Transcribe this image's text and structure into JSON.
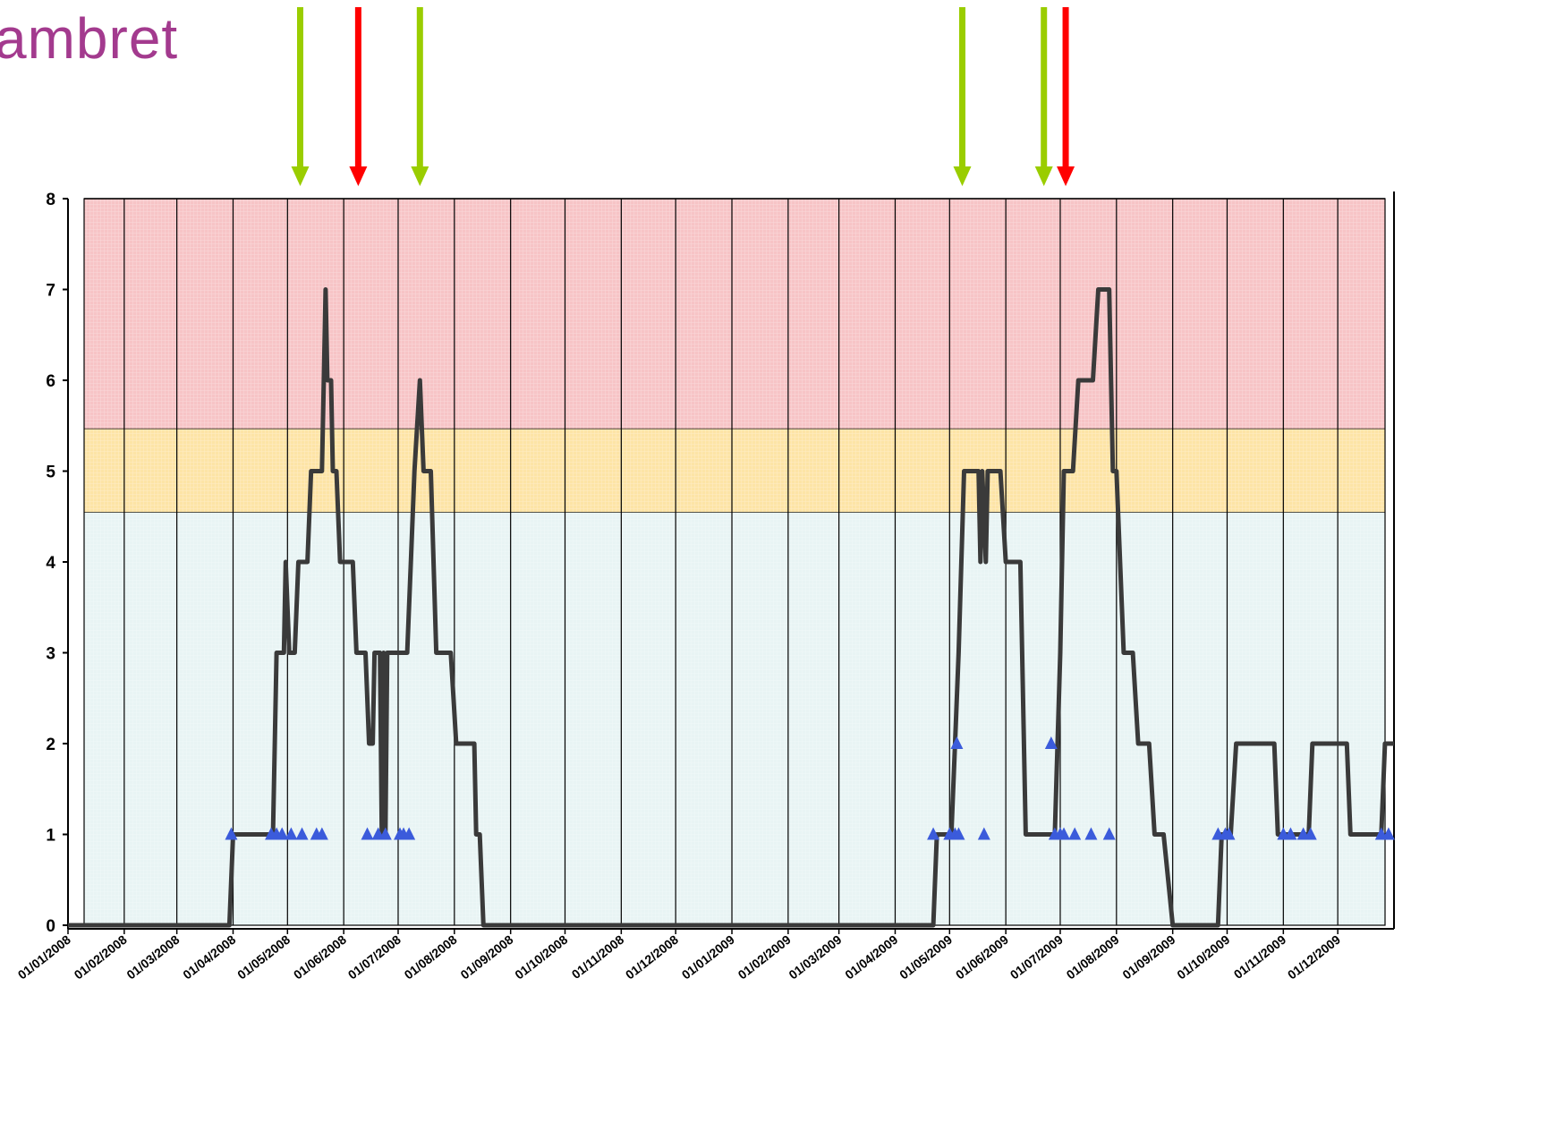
{
  "logo": {
    "text": "ambret"
  },
  "chart_data": {
    "type": "line",
    "ylim": [
      0,
      8
    ],
    "yticks": [
      "0",
      "1",
      "2",
      "3",
      "4",
      "5",
      "6",
      "7",
      "8"
    ],
    "xlim": [
      "2008-01-01",
      "2010-01-01"
    ],
    "xtick_labels": [
      "01/01/2008",
      "01/02/2008",
      "01/03/2008",
      "01/04/2008",
      "01/05/2008",
      "01/06/2008",
      "01/07/2008",
      "01/08/2008",
      "01/09/2008",
      "01/10/2008",
      "01/11/2008",
      "01/12/2008",
      "01/01/2009",
      "01/02/2009",
      "01/03/2009",
      "01/04/2009",
      "01/05/2009",
      "01/06/2009",
      "01/07/2009",
      "01/08/2009",
      "01/09/2009",
      "01/10/2009",
      "01/11/2009",
      "01/12/2009"
    ],
    "bands": [
      {
        "from": 0,
        "to": 4.55,
        "color": "#e8f4f4"
      },
      {
        "from": 4.55,
        "to": 5.47,
        "color": "#fde4a6"
      },
      {
        "from": 5.47,
        "to": 8,
        "color": "#f7c4c6"
      }
    ],
    "grid": true,
    "series": [
      {
        "color": "#3a3a3a",
        "points": [
          [
            "2008-01-01",
            0
          ],
          [
            "2008-03-30",
            0
          ],
          [
            "2008-04-01",
            1
          ],
          [
            "2008-04-23",
            1
          ],
          [
            "2008-04-25",
            3
          ],
          [
            "2008-04-29",
            3
          ],
          [
            "2008-04-30",
            4
          ],
          [
            "2008-05-02",
            3
          ],
          [
            "2008-05-05",
            3
          ],
          [
            "2008-05-07",
            4
          ],
          [
            "2008-05-12",
            4
          ],
          [
            "2008-05-14",
            5
          ],
          [
            "2008-05-20",
            5
          ],
          [
            "2008-05-21",
            6
          ],
          [
            "2008-05-22",
            7
          ],
          [
            "2008-05-23",
            6
          ],
          [
            "2008-05-25",
            6
          ],
          [
            "2008-05-26",
            5
          ],
          [
            "2008-05-28",
            5
          ],
          [
            "2008-05-30",
            4
          ],
          [
            "2008-06-06",
            4
          ],
          [
            "2008-06-08",
            3
          ],
          [
            "2008-06-13",
            3
          ],
          [
            "2008-06-15",
            2
          ],
          [
            "2008-06-17",
            2
          ],
          [
            "2008-06-18",
            3
          ],
          [
            "2008-06-21",
            3
          ],
          [
            "2008-06-22",
            1
          ],
          [
            "2008-06-23",
            3
          ],
          [
            "2008-06-24",
            1
          ],
          [
            "2008-06-25",
            3
          ],
          [
            "2008-07-06",
            3
          ],
          [
            "2008-07-08",
            4
          ],
          [
            "2008-07-10",
            5
          ],
          [
            "2008-07-13",
            6
          ],
          [
            "2008-07-15",
            5
          ],
          [
            "2008-07-19",
            5
          ],
          [
            "2008-07-22",
            3
          ],
          [
            "2008-07-30",
            3
          ],
          [
            "2008-08-02",
            2
          ],
          [
            "2008-08-12",
            2
          ],
          [
            "2008-08-13",
            1
          ],
          [
            "2008-08-15",
            1
          ],
          [
            "2008-08-17",
            0
          ],
          [
            "2009-04-22",
            0
          ],
          [
            "2009-04-24",
            1
          ],
          [
            "2009-05-02",
            1
          ],
          [
            "2009-05-04",
            2
          ],
          [
            "2009-05-06",
            3
          ],
          [
            "2009-05-09",
            5
          ],
          [
            "2009-05-17",
            5
          ],
          [
            "2009-05-18",
            4
          ],
          [
            "2009-05-19",
            5
          ],
          [
            "2009-05-21",
            4
          ],
          [
            "2009-05-22",
            5
          ],
          [
            "2009-05-29",
            5
          ],
          [
            "2009-06-01",
            4
          ],
          [
            "2009-06-09",
            4
          ],
          [
            "2009-06-12",
            1
          ],
          [
            "2009-06-28",
            1
          ],
          [
            "2009-07-01",
            3
          ],
          [
            "2009-07-03",
            5
          ],
          [
            "2009-07-08",
            5
          ],
          [
            "2009-07-11",
            6
          ],
          [
            "2009-07-19",
            6
          ],
          [
            "2009-07-22",
            7
          ],
          [
            "2009-07-28",
            7
          ],
          [
            "2009-07-30",
            5
          ],
          [
            "2009-08-01",
            5
          ],
          [
            "2009-08-05",
            3
          ],
          [
            "2009-08-10",
            3
          ],
          [
            "2009-08-13",
            2
          ],
          [
            "2009-08-19",
            2
          ],
          [
            "2009-08-22",
            1
          ],
          [
            "2009-08-27",
            1
          ],
          [
            "2009-09-01",
            0
          ],
          [
            "2009-09-26",
            0
          ],
          [
            "2009-09-28",
            1
          ],
          [
            "2009-10-03",
            1
          ],
          [
            "2009-10-06",
            2
          ],
          [
            "2009-10-27",
            2
          ],
          [
            "2009-10-29",
            1
          ],
          [
            "2009-11-15",
            1
          ],
          [
            "2009-11-17",
            2
          ],
          [
            "2009-12-06",
            2
          ],
          [
            "2009-12-08",
            1
          ],
          [
            "2009-12-25",
            1
          ],
          [
            "2009-12-27",
            2
          ],
          [
            "2010-01-01",
            2
          ]
        ]
      }
    ],
    "markers": {
      "shape": "triangle",
      "color": "#3b5bdb",
      "points": [
        [
          "2008-03-31",
          1
        ],
        [
          "2008-04-22",
          1
        ],
        [
          "2008-04-25",
          1
        ],
        [
          "2008-04-28",
          1
        ],
        [
          "2008-05-03",
          1
        ],
        [
          "2008-05-09",
          1
        ],
        [
          "2008-05-17",
          1
        ],
        [
          "2008-05-20",
          1
        ],
        [
          "2008-06-14",
          1
        ],
        [
          "2008-06-20",
          1
        ],
        [
          "2008-06-24",
          1
        ],
        [
          "2008-07-02",
          1
        ],
        [
          "2008-07-04",
          1
        ],
        [
          "2008-07-07",
          1
        ],
        [
          "2009-04-22",
          1
        ],
        [
          "2009-05-01",
          1
        ],
        [
          "2009-05-04",
          1
        ],
        [
          "2009-05-06",
          1
        ],
        [
          "2009-05-05",
          2
        ],
        [
          "2009-05-20",
          1
        ],
        [
          "2009-06-26",
          2
        ],
        [
          "2009-06-28",
          1
        ],
        [
          "2009-07-01",
          1
        ],
        [
          "2009-07-03",
          1
        ],
        [
          "2009-07-09",
          1
        ],
        [
          "2009-07-18",
          1
        ],
        [
          "2009-07-28",
          1
        ],
        [
          "2009-09-26",
          1
        ],
        [
          "2009-09-30",
          1
        ],
        [
          "2009-10-02",
          1
        ],
        [
          "2009-11-01",
          1
        ],
        [
          "2009-11-05",
          1
        ],
        [
          "2009-11-12",
          1
        ],
        [
          "2009-11-16",
          1
        ],
        [
          "2009-12-25",
          1
        ],
        [
          "2009-12-29",
          1
        ]
      ]
    },
    "arrows": [
      {
        "x": "2008-05-08",
        "color": "#9acd00"
      },
      {
        "x": "2008-06-09",
        "color": "#ff0000"
      },
      {
        "x": "2008-07-13",
        "color": "#9acd00"
      },
      {
        "x": "2009-05-08",
        "color": "#9acd00"
      },
      {
        "x": "2009-06-22",
        "color": "#9acd00"
      },
      {
        "x": "2009-07-04",
        "color": "#ff0000"
      }
    ]
  }
}
